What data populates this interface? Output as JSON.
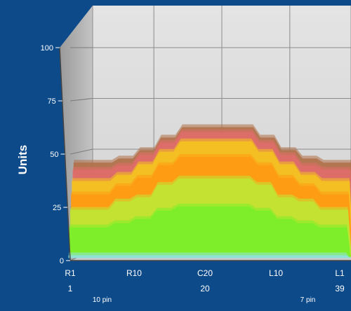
{
  "chart_data": {
    "type": "area",
    "chart_style": "3d-stacked-stepped-area",
    "ylabel": "Units",
    "ylim": [
      0,
      100
    ],
    "yticks": [
      0,
      25,
      50,
      75,
      100
    ],
    "xlim": [
      1,
      39
    ],
    "x_primary_labels": [
      {
        "x": 1,
        "label": "R1"
      },
      {
        "x": 10,
        "label": "R10"
      },
      {
        "x": 20,
        "label": "C20"
      },
      {
        "x": 30,
        "label": "L10"
      },
      {
        "x": 39,
        "label": "L1"
      }
    ],
    "x_secondary_labels": [
      {
        "x": 1,
        "label": "1"
      },
      {
        "x": 20,
        "label": "20"
      },
      {
        "x": 39,
        "label": "39"
      }
    ],
    "x_sub_labels": [
      {
        "x": 5.5,
        "label": "10 pin"
      },
      {
        "x": 34.5,
        "label": "7 pin"
      }
    ],
    "x": [
      1,
      4,
      7,
      10,
      13,
      16,
      20,
      24,
      27,
      30,
      33,
      36,
      39
    ],
    "grid": true,
    "legend": "none",
    "series": [
      {
        "color": "#8fe3e0",
        "values": [
          1,
          1,
          1,
          1,
          1,
          1,
          1,
          1,
          1,
          1,
          1,
          1,
          1
        ]
      },
      {
        "color": "#7bef2a",
        "values": [
          14,
          14,
          16,
          18,
          22,
          24,
          24,
          24,
          22,
          18,
          16,
          14,
          14
        ]
      },
      {
        "color": "#bfe834",
        "values": [
          22,
          22,
          26,
          28,
          34,
          37,
          37,
          37,
          34,
          28,
          26,
          22,
          22
        ]
      },
      {
        "color": "#ff9a14",
        "values": [
          29,
          29,
          33,
          37,
          43,
          47,
          47,
          47,
          43,
          37,
          33,
          29,
          29
        ]
      },
      {
        "color": "#f6c51d",
        "values": [
          35,
          35,
          38,
          43,
          49,
          54,
          54,
          54,
          49,
          43,
          38,
          35,
          35
        ]
      },
      {
        "color": "#e06d6a",
        "values": [
          40,
          40,
          42,
          47,
          53,
          58,
          58,
          58,
          53,
          47,
          42,
          40,
          40
        ]
      },
      {
        "color": "#b07048",
        "values": [
          43,
          43,
          45,
          49,
          55,
          60,
          60,
          60,
          55,
          49,
          45,
          43,
          43
        ]
      }
    ]
  }
}
